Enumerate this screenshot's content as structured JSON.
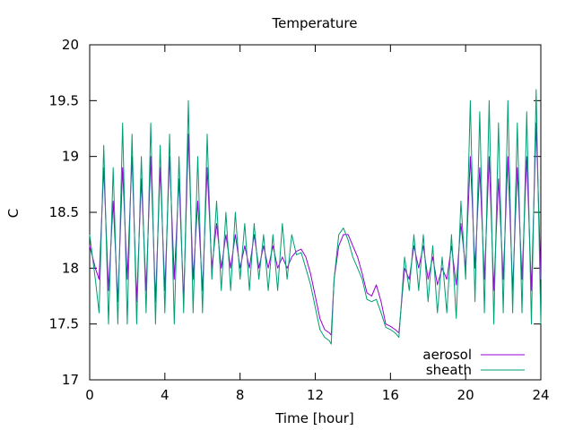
{
  "chart_data": {
    "type": "line",
    "title": "Temperature",
    "xlabel": "Time [hour]",
    "ylabel": "C",
    "xlim": [
      0,
      24
    ],
    "ylim": [
      17,
      20
    ],
    "xticks": [
      "0",
      "4",
      "8",
      "12",
      "16",
      "20",
      "24"
    ],
    "yticks": [
      "17",
      "17.5",
      "18",
      "18.5",
      "19",
      "19.5",
      "20"
    ],
    "grid": false,
    "legend": "bottom-right",
    "series": [
      {
        "name": "aerosol",
        "color": "#9400d3",
        "x": [
          0,
          0.3,
          0.5,
          0.75,
          1.0,
          1.25,
          1.5,
          1.75,
          2.0,
          2.25,
          2.5,
          2.75,
          3.0,
          3.25,
          3.5,
          3.75,
          4.0,
          4.25,
          4.5,
          4.75,
          5.0,
          5.25,
          5.5,
          5.75,
          6.0,
          6.25,
          6.5,
          6.75,
          7.0,
          7.25,
          7.5,
          7.75,
          8.0,
          8.25,
          8.5,
          8.75,
          9.0,
          9.25,
          9.5,
          9.75,
          10.0,
          10.25,
          10.5,
          10.75,
          11.0,
          11.25,
          11.5,
          11.75,
          12.0,
          12.25,
          12.5,
          12.75,
          12.85,
          13.0,
          13.25,
          13.5,
          13.75,
          14.0,
          14.25,
          14.5,
          14.75,
          15.0,
          15.25,
          15.5,
          15.75,
          16.0,
          16.25,
          16.45,
          16.75,
          17.0,
          17.25,
          17.5,
          17.75,
          18.0,
          18.25,
          18.5,
          18.75,
          19.0,
          19.25,
          19.5,
          19.75,
          20.0,
          20.25,
          20.5,
          20.75,
          21.0,
          21.25,
          21.5,
          21.75,
          22.0,
          22.25,
          22.5,
          22.75,
          23.0,
          23.25,
          23.5,
          23.75,
          24.0
        ],
        "y": [
          18.2,
          18.0,
          17.9,
          18.9,
          17.8,
          18.6,
          17.7,
          18.9,
          17.9,
          19.0,
          17.7,
          18.8,
          17.8,
          19.0,
          17.7,
          18.9,
          17.8,
          19.0,
          17.9,
          18.8,
          17.7,
          19.2,
          17.9,
          18.6,
          17.8,
          18.9,
          18.0,
          18.4,
          18.0,
          18.3,
          18.0,
          18.3,
          18.0,
          18.2,
          18.0,
          18.3,
          18.0,
          18.2,
          18.0,
          18.2,
          18.0,
          18.1,
          18.0,
          18.1,
          18.15,
          18.17,
          18.1,
          17.95,
          17.75,
          17.55,
          17.45,
          17.42,
          17.4,
          17.9,
          18.2,
          18.3,
          18.3,
          18.2,
          18.1,
          17.95,
          17.78,
          17.75,
          17.85,
          17.7,
          17.5,
          17.48,
          17.45,
          17.42,
          18.0,
          17.9,
          18.2,
          18.0,
          18.2,
          17.9,
          18.1,
          17.85,
          18.0,
          17.9,
          18.2,
          17.85,
          18.4,
          18.0,
          19.0,
          18.0,
          18.9,
          17.9,
          19.0,
          17.8,
          18.8,
          17.9,
          19.0,
          17.8,
          18.9,
          17.9,
          19.0,
          17.8,
          19.3,
          17.9
        ]
      },
      {
        "name": "sheath",
        "color": "#009e73",
        "x": [
          0,
          0.3,
          0.5,
          0.75,
          1.0,
          1.25,
          1.5,
          1.75,
          2.0,
          2.25,
          2.5,
          2.75,
          3.0,
          3.25,
          3.5,
          3.75,
          4.0,
          4.25,
          4.5,
          4.75,
          5.0,
          5.25,
          5.5,
          5.75,
          6.0,
          6.25,
          6.5,
          6.75,
          7.0,
          7.25,
          7.5,
          7.75,
          8.0,
          8.25,
          8.5,
          8.75,
          9.0,
          9.25,
          9.5,
          9.75,
          10.0,
          10.25,
          10.5,
          10.75,
          11.0,
          11.25,
          11.5,
          11.75,
          12.0,
          12.25,
          12.5,
          12.75,
          12.85,
          13.0,
          13.25,
          13.5,
          13.75,
          14.0,
          14.25,
          14.5,
          14.75,
          15.0,
          15.25,
          15.5,
          15.75,
          16.0,
          16.25,
          16.45,
          16.75,
          17.0,
          17.25,
          17.5,
          17.75,
          18.0,
          18.25,
          18.5,
          18.75,
          19.0,
          19.25,
          19.5,
          19.75,
          20.0,
          20.25,
          20.5,
          20.75,
          21.0,
          21.25,
          21.5,
          21.75,
          22.0,
          22.25,
          22.5,
          22.75,
          23.0,
          23.25,
          23.5,
          23.75,
          24.0
        ],
        "y": [
          18.3,
          17.9,
          17.6,
          19.1,
          17.5,
          18.9,
          17.5,
          19.3,
          17.5,
          19.2,
          17.5,
          19.0,
          17.6,
          19.3,
          17.5,
          19.1,
          17.6,
          19.2,
          17.5,
          19.0,
          17.6,
          19.5,
          17.6,
          19.0,
          17.6,
          19.2,
          17.9,
          18.6,
          17.8,
          18.5,
          17.8,
          18.5,
          17.9,
          18.4,
          17.8,
          18.4,
          17.9,
          18.3,
          17.8,
          18.3,
          17.8,
          18.4,
          17.9,
          18.3,
          18.12,
          18.14,
          18.0,
          17.85,
          17.65,
          17.45,
          17.38,
          17.35,
          17.32,
          17.9,
          18.3,
          18.36,
          18.25,
          18.1,
          18.0,
          17.9,
          17.72,
          17.7,
          17.72,
          17.6,
          17.47,
          17.45,
          17.42,
          17.38,
          18.1,
          17.8,
          18.3,
          17.8,
          18.3,
          17.7,
          18.2,
          17.6,
          18.1,
          17.6,
          18.3,
          17.55,
          18.6,
          17.9,
          19.5,
          17.7,
          19.4,
          17.6,
          19.5,
          17.5,
          19.3,
          17.6,
          19.5,
          17.6,
          19.3,
          17.6,
          19.4,
          17.5,
          19.6,
          17.5
        ]
      }
    ]
  }
}
